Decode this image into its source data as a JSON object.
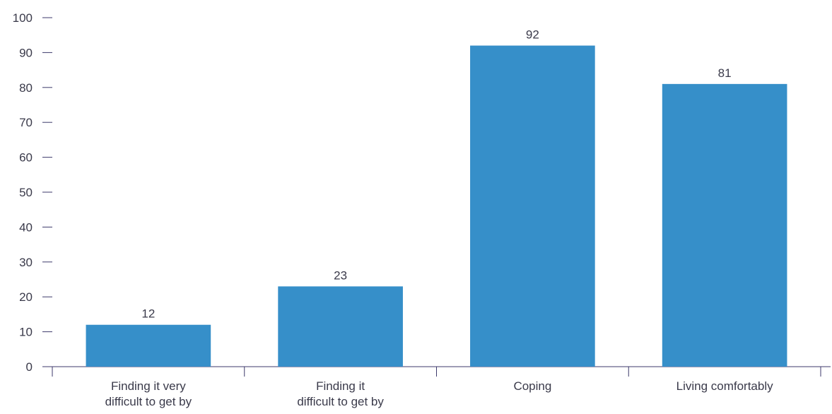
{
  "chart_data": {
    "type": "bar",
    "title": "",
    "xlabel": "",
    "ylabel": "",
    "ylim": [
      0,
      100
    ],
    "yticks": [
      0,
      10,
      20,
      30,
      40,
      50,
      60,
      70,
      80,
      90,
      100
    ],
    "categories": [
      [
        "Finding it very",
        "difficult to get by"
      ],
      [
        "Finding it",
        "difficult to get by"
      ],
      [
        "Coping"
      ],
      [
        "Living comfortably"
      ]
    ],
    "values": [
      12,
      23,
      92,
      81
    ],
    "data_labels": [
      "12",
      "23",
      "92",
      "81"
    ],
    "grid": false,
    "legend": "none",
    "colors": {
      "bar": "#368fc9",
      "axis": "#3d3a6b",
      "text": "#3a3a4a"
    }
  }
}
